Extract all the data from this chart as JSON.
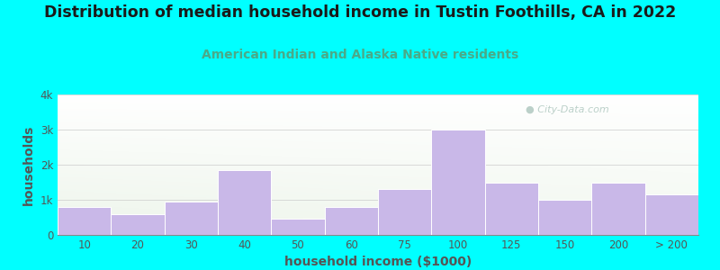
{
  "title": "Distribution of median household income in Tustin Foothills, CA in 2022",
  "subtitle": "American Indian and Alaska Native residents",
  "xlabel": "household income ($1000)",
  "ylabel": "households",
  "categories": [
    "10",
    "20",
    "30",
    "40",
    "50",
    "60",
    "75",
    "100",
    "125",
    "150",
    "200",
    "> 200"
  ],
  "values": [
    800,
    600,
    950,
    1850,
    450,
    800,
    1300,
    3000,
    1500,
    1000,
    1500,
    1150
  ],
  "bar_color": "#c9b8e8",
  "bar_edge_color": "#ffffff",
  "bg_color_topleft": "#e0f5ec",
  "bg_color_bottomleft": "#c8efe0",
  "bg_color_topright": "#f5fbf8",
  "outer_background": "#00ffff",
  "title_color": "#1a1a1a",
  "subtitle_color": "#4aaa88",
  "axis_label_color": "#555555",
  "tick_label_color": "#555555",
  "watermark_color": "#b0c8c0",
  "ylim": [
    0,
    4000
  ],
  "yticks": [
    0,
    1000,
    2000,
    3000,
    4000
  ],
  "ytick_labels": [
    "0",
    "1k",
    "2k",
    "3k",
    "4k"
  ],
  "title_fontsize": 12.5,
  "subtitle_fontsize": 10,
  "label_fontsize": 10,
  "tick_fontsize": 8.5
}
